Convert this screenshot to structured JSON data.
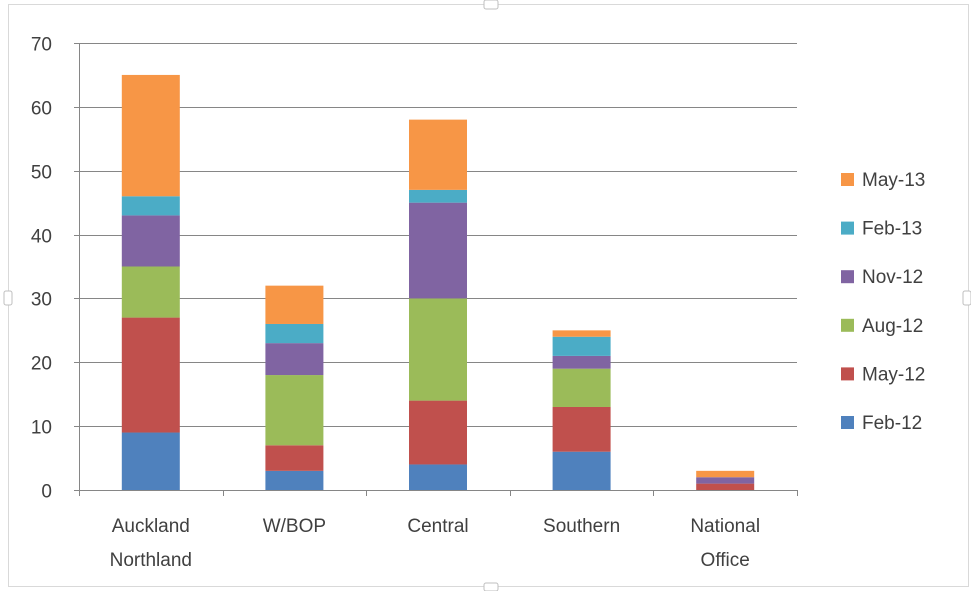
{
  "chart_data": {
    "type": "bar",
    "stacked": true,
    "title": "",
    "xlabel": "",
    "ylabel": "",
    "ylim": [
      0,
      70
    ],
    "yticks": [
      0,
      10,
      20,
      30,
      40,
      50,
      60,
      70
    ],
    "grid": true,
    "legend_position": "right",
    "categories": [
      [
        "Auckland",
        "Northland"
      ],
      [
        "W/BOP"
      ],
      [
        "Central"
      ],
      [
        "Southern"
      ],
      [
        "National",
        "Office"
      ]
    ],
    "series": [
      {
        "name": "Feb-12",
        "color": "#4F81BD",
        "values": [
          9,
          3,
          4,
          6,
          0
        ]
      },
      {
        "name": "May-12",
        "color": "#C0504D",
        "values": [
          18,
          4,
          10,
          7,
          1
        ]
      },
      {
        "name": "Aug-12",
        "color": "#9BBB59",
        "values": [
          8,
          11,
          16,
          6,
          0
        ]
      },
      {
        "name": "Nov-12",
        "color": "#8064A2",
        "values": [
          8,
          5,
          15,
          2,
          1
        ]
      },
      {
        "name": "Feb-13",
        "color": "#4BACC6",
        "values": [
          3,
          3,
          2,
          3,
          0
        ]
      },
      {
        "name": "May-13",
        "color": "#F79646",
        "values": [
          19,
          6,
          11,
          1,
          1
        ]
      }
    ]
  }
}
